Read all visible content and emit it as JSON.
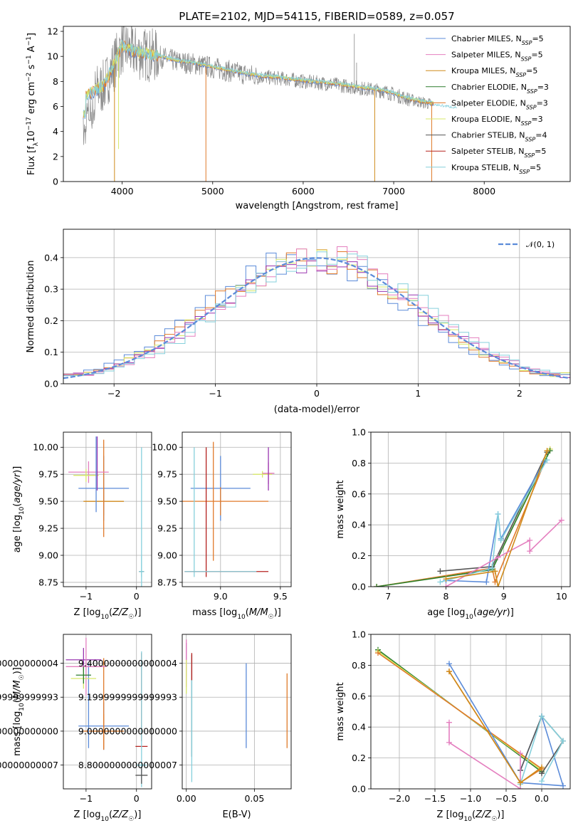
{
  "figure": {
    "title": "PLATE=2102, MJD=54115, FIBERID=0589, z=0.057"
  },
  "colors": {
    "Chabrier MILES": "#5b8bd9",
    "Salpeter MILES": "#e47fbf",
    "Kroupa MILES": "#cf8a1a",
    "Chabrier ELODIE": "#2e7d2e",
    "Salpeter ELODIE": "#e07a2a",
    "Kroupa ELODIE": "#d7e86a",
    "Chabrier STELIB": "#555555",
    "Salpeter STELIB": "#b5221f",
    "Kroupa STELIB": "#86d0dc",
    "data": "#888888",
    "normal": "#5b8bd9",
    "purple": "#9a36b0"
  },
  "chart_data": [
    {
      "id": "spectrum",
      "type": "line",
      "title": "PLATE=2102, MJD=54115, FIBERID=0589, z=0.057",
      "xlabel": "wavelength [Angstrom, rest frame]",
      "ylabel": "Flux [f_λ10^-17 erg cm^-2 s^-1 A^-1]",
      "xlim": [
        3350,
        8950
      ],
      "ylim": [
        0,
        12.4
      ],
      "xticks": [
        4000,
        5000,
        6000,
        7000,
        8000
      ],
      "yticks": [
        0,
        2,
        4,
        6,
        8,
        10,
        12
      ],
      "legend": "top-right",
      "legend_entries": [
        "Chabrier MILES, N_SSP=5",
        "Salpeter MILES, N_SSP=5",
        "Kroupa MILES, N_SSP=5",
        "Chabrier ELODIE, N_SSP=3",
        "Salpeter ELODIE, N_SSP=3",
        "Kroupa ELODIE, N_SSP=3",
        "Chabrier STELIB, N_SSP=4",
        "Salpeter STELIB, N_SSP=5",
        "Kroupa STELIB, N_SSP=5"
      ],
      "continuum": {
        "x": [
          3600,
          3700,
          3800,
          3900,
          4000,
          4100,
          4200,
          4400,
          4600,
          4800,
          5000,
          5200,
          5500,
          5800,
          6000,
          6300,
          6600,
          6900,
          7200,
          7400,
          7600,
          7800,
          8000,
          8300,
          8600,
          8850
        ],
        "y": [
          6.8,
          7.2,
          7.6,
          9.2,
          10.8,
          10.4,
          10.2,
          10.0,
          9.6,
          9.4,
          9.1,
          8.8,
          8.4,
          8.2,
          8.0,
          7.8,
          7.5,
          7.2,
          6.5,
          6.2,
          6.0,
          5.8,
          5.7,
          5.5,
          5.4,
          5.3
        ]
      },
      "dips": [
        {
          "x": 3915,
          "y": 0
        },
        {
          "x": 3960,
          "y": 2.6
        },
        {
          "x": 4925,
          "y": 0
        },
        {
          "x": 6790,
          "y": 0
        },
        {
          "x": 7420,
          "y": 0
        }
      ],
      "data_spikes": [
        {
          "x": 6565,
          "y": 11.8
        },
        {
          "x": 6590,
          "y": 9.5
        },
        {
          "x": 6720,
          "y": 7.8
        }
      ]
    },
    {
      "id": "residuals",
      "type": "histogram",
      "xlabel": "(data-model)/error",
      "ylabel": "Normed distribution",
      "xlim": [
        -2.5,
        2.5
      ],
      "ylim": [
        0,
        0.49
      ],
      "xticks": [
        -2,
        -1,
        0,
        1,
        2
      ],
      "yticks": [
        0.0,
        0.1,
        0.2,
        0.3,
        0.4
      ],
      "legend": "top-right",
      "legend_entries": [
        "𝒩(0, 1)"
      ],
      "bin_width": 0.1,
      "gaussian": {
        "mean": 0,
        "sigma": 1
      }
    },
    {
      "id": "age_vs_Z",
      "type": "errorbar",
      "xlabel": "Z [log10(Z/Z☉)]",
      "ylabel": "age  [log10(age/yr)]",
      "xlim": [
        -1.45,
        0.3
      ],
      "ylim": [
        8.71,
        10.14
      ],
      "xticks": [
        -1,
        0
      ],
      "yticks": [
        8.75,
        9.0,
        9.25,
        9.5,
        9.75,
        10.0
      ],
      "points": [
        {
          "x": -0.65,
          "y": 9.5,
          "xerr": 0.4,
          "yerr": 0.13,
          "c": "Salpeter ELODIE"
        },
        {
          "x": -0.65,
          "y": 9.5,
          "xerr": 0.4,
          "yerr": 0.13,
          "c": "Kroupa MILES"
        },
        {
          "x": -0.65,
          "y": 9.62,
          "xerr": 0.5,
          "yerr": 0.3,
          "c": "Chabrier MILES"
        },
        {
          "x": -0.65,
          "y": 9.62,
          "xerr": 0.0,
          "yerr": 0.45,
          "c": "Salpeter ELODIE"
        },
        {
          "x": -0.95,
          "y": 9.77,
          "xerr": 0.4,
          "yerr": 0.1,
          "c": "Salpeter MILES"
        },
        {
          "x": -1.0,
          "y": 9.74,
          "xerr": 0.25,
          "yerr": 0.06,
          "c": "Kroupa ELODIE"
        },
        {
          "x": -0.78,
          "y": 9.85,
          "xerr": 0.0,
          "yerr": 0.25,
          "c": "purple"
        },
        {
          "x": -0.8,
          "y": 9.75,
          "xerr": 0.0,
          "yerr": 0.35,
          "c": "Chabrier MILES"
        },
        {
          "x": 0.1,
          "y": 9.4,
          "xerr": 0.0,
          "yerr": 0.6,
          "c": "Kroupa STELIB"
        },
        {
          "x": 0.1,
          "y": 8.85,
          "xerr": 0.05,
          "yerr": 0.0,
          "c": "Chabrier STELIB"
        },
        {
          "x": 0.1,
          "y": 8.85,
          "xerr": 0.05,
          "yerr": 0.15,
          "c": "Kroupa STELIB"
        }
      ]
    },
    {
      "id": "age_vs_mass",
      "type": "errorbar",
      "xlabel": "mass [log10(M/M☉)]",
      "ylabel": "",
      "xlim": [
        8.68,
        9.59
      ],
      "ylim": [
        8.71,
        10.14
      ],
      "xticks": [
        9.0,
        9.5
      ],
      "yticks": [
        8.75,
        9.0,
        9.25,
        9.5,
        9.75,
        10.0
      ],
      "points": [
        {
          "x": 9.0,
          "y": 9.62,
          "xerr": 0.25,
          "yerr": 0.3,
          "c": "Chabrier MILES"
        },
        {
          "x": 9.0,
          "y": 9.5,
          "xerr": 0.4,
          "yerr": 0.13,
          "c": "Salpeter ELODIE"
        },
        {
          "x": 8.94,
          "y": 9.5,
          "xerr": 0.0,
          "yerr": 0.55,
          "c": "Salpeter ELODIE"
        },
        {
          "x": 9.35,
          "y": 9.75,
          "xerr": 0.08,
          "yerr": 0.03,
          "c": "Kroupa ELODIE"
        },
        {
          "x": 9.4,
          "y": 9.76,
          "xerr": 0.05,
          "yerr": 0.1,
          "c": "Salpeter MILES"
        },
        {
          "x": 9.4,
          "y": 9.8,
          "xerr": 0.0,
          "yerr": 0.2,
          "c": "purple"
        },
        {
          "x": 8.88,
          "y": 9.4,
          "xerr": 0.0,
          "yerr": 0.6,
          "c": "Salpeter STELIB"
        },
        {
          "x": 8.78,
          "y": 9.4,
          "xerr": 0.0,
          "yerr": 0.6,
          "c": "Kroupa STELIB"
        },
        {
          "x": 9.05,
          "y": 8.85,
          "xerr": 0.35,
          "yerr": 0.0,
          "c": "Salpeter STELIB"
        },
        {
          "x": 9.0,
          "y": 8.85,
          "xerr": 0.3,
          "yerr": 0.0,
          "c": "Kroupa STELIB"
        }
      ]
    },
    {
      "id": "weight_vs_age",
      "type": "line",
      "xlabel": "age  [log10(age/yr)]",
      "ylabel": "mass weight",
      "xlim": [
        6.7,
        10.15
      ],
      "ylim": [
        0,
        1.0
      ],
      "xticks": [
        7,
        8,
        9,
        10
      ],
      "yticks": [
        0.0,
        0.2,
        0.4,
        0.6,
        0.8,
        1.0
      ],
      "series": [
        {
          "c": "Salpeter ELODIE",
          "x": [
            6.8,
            8.8,
            8.85,
            9.8
          ],
          "y": [
            0.0,
            0.12,
            0.03,
            0.89
          ]
        },
        {
          "c": "Kroupa ELODIE",
          "x": [
            6.8,
            8.8,
            9.8
          ],
          "y": [
            0.0,
            0.11,
            0.89
          ]
        },
        {
          "c": "Chabrier ELODIE",
          "x": [
            6.8,
            8.8,
            9.8
          ],
          "y": [
            0.0,
            0.11,
            0.88
          ]
        },
        {
          "c": "Chabrier STELIB",
          "x": [
            7.9,
            8.8,
            9.75
          ],
          "y": [
            0.1,
            0.13,
            0.87
          ]
        },
        {
          "c": "Chabrier MILES",
          "x": [
            8.0,
            8.7,
            8.9,
            8.95,
            9.7
          ],
          "y": [
            0.04,
            0.03,
            0.47,
            0.31,
            0.81
          ]
        },
        {
          "c": "Kroupa STELIB",
          "x": [
            7.9,
            8.8,
            8.9,
            8.95,
            9.75
          ],
          "y": [
            0.03,
            0.12,
            0.47,
            0.3,
            0.82
          ]
        },
        {
          "c": "Salpeter MILES",
          "x": [
            8.0,
            8.9,
            9.45,
            9.45,
            10.0
          ],
          "y": [
            0.0,
            0.19,
            0.3,
            0.23,
            0.43
          ]
        },
        {
          "c": "Kroupa MILES",
          "x": [
            8.0,
            8.85,
            8.9,
            9.75
          ],
          "y": [
            0.05,
            0.1,
            0.0,
            0.88
          ]
        }
      ]
    },
    {
      "id": "mass_vs_Z",
      "type": "errorbar",
      "xlabel": "Z [log10(Z/Z☉)]",
      "ylabel": "mass [log10(M/M☉)]",
      "xlim": [
        -1.45,
        0.3
      ],
      "ylim": [
        8.66,
        9.57
      ],
      "xticks": [
        -1,
        0
      ],
      "yticks": [
        8.8,
        9.0,
        9.2,
        9.4
      ],
      "points": [
        {
          "x": -0.65,
          "y": 9.03,
          "xerr": 0.5,
          "yerr": 0.14,
          "c": "Chabrier MILES"
        },
        {
          "x": -0.65,
          "y": 9.0,
          "xerr": 0.4,
          "yerr": 0.1,
          "c": "Salpeter ELODIE"
        },
        {
          "x": -0.65,
          "y": 9.16,
          "xerr": 0.0,
          "yerr": 0.27,
          "c": "Salpeter ELODIE"
        },
        {
          "x": -0.95,
          "y": 9.15,
          "xerr": 0.0,
          "yerr": 0.25,
          "c": "Chabrier MILES"
        },
        {
          "x": -1.05,
          "y": 9.42,
          "xerr": 0.35,
          "yerr": 0.07,
          "c": "purple"
        },
        {
          "x": -1.0,
          "y": 9.38,
          "xerr": 0.4,
          "yerr": 0.17,
          "c": "Salpeter MILES"
        },
        {
          "x": -1.05,
          "y": 9.31,
          "xerr": 0.25,
          "yerr": 0.06,
          "c": "Kroupa ELODIE"
        },
        {
          "x": -1.05,
          "y": 9.33,
          "xerr": 0.15,
          "yerr": 0.05,
          "c": "Chabrier ELODIE"
        },
        {
          "x": 0.1,
          "y": 9.2,
          "xerr": 0.0,
          "yerr": 0.26,
          "c": "Salpeter STELIB"
        },
        {
          "x": 0.1,
          "y": 8.91,
          "xerr": 0.12,
          "yerr": 0.0,
          "c": "Salpeter STELIB"
        },
        {
          "x": 0.1,
          "y": 9.07,
          "xerr": 0.0,
          "yerr": 0.4,
          "c": "Kroupa STELIB"
        },
        {
          "x": 0.1,
          "y": 8.8,
          "xerr": 0.1,
          "yerr": 0.0,
          "c": "Kroupa STELIB"
        },
        {
          "x": 0.1,
          "y": 8.74,
          "xerr": 0.12,
          "yerr": 0.05,
          "c": "Chabrier STELIB"
        }
      ]
    },
    {
      "id": "mass_vs_EBV",
      "type": "errorbar",
      "xlabel": "E(B-V)",
      "ylabel": "",
      "xlim": [
        -0.003,
        0.077
      ],
      "ylim": [
        8.66,
        9.57
      ],
      "xticks": [
        0.0,
        0.05
      ],
      "yticks": [
        8.8,
        9.0,
        9.2,
        9.4
      ],
      "points": [
        {
          "x": 0.044,
          "y": 9.15,
          "xerr": 0.0,
          "yerr": 0.25,
          "c": "Chabrier MILES"
        },
        {
          "x": 0.074,
          "y": 9.12,
          "xerr": 0.0,
          "yerr": 0.22,
          "c": "Salpeter ELODIE"
        },
        {
          "x": 0.0,
          "y": 9.42,
          "xerr": 0.0,
          "yerr": 0.1,
          "c": "purple"
        },
        {
          "x": 0.0,
          "y": 9.4,
          "xerr": 0.0,
          "yerr": 0.14,
          "c": "Salpeter MILES"
        },
        {
          "x": 0.0,
          "y": 9.32,
          "xerr": 0.0,
          "yerr": 0.1,
          "c": "Kroupa ELODIE"
        },
        {
          "x": 0.004,
          "y": 9.15,
          "xerr": 0.0,
          "yerr": 0.3,
          "c": "Chabrier STELIB"
        },
        {
          "x": 0.004,
          "y": 9.38,
          "xerr": 0.0,
          "yerr": 0.08,
          "c": "Salpeter STELIB"
        },
        {
          "x": 0.004,
          "y": 9.0,
          "xerr": 0.0,
          "yerr": 0.3,
          "c": "Kroupa STELIB"
        }
      ]
    },
    {
      "id": "weight_vs_Z",
      "type": "line",
      "xlabel": "Z [log10(Z/Z☉)]",
      "ylabel": "mass weight",
      "xlim": [
        -2.4,
        0.4
      ],
      "ylim": [
        0,
        1.0
      ],
      "xticks": [
        -2.0,
        -1.5,
        -1.0,
        -0.5,
        0.0
      ],
      "yticks": [
        0.0,
        0.2,
        0.4,
        0.6,
        0.8,
        1.0
      ],
      "series": [
        {
          "c": "Chabrier ELODIE",
          "x": [
            -2.3,
            0.0
          ],
          "y": [
            0.9,
            0.11
          ]
        },
        {
          "c": "Kroupa ELODIE",
          "x": [
            -2.3,
            0.0
          ],
          "y": [
            0.89,
            0.12
          ]
        },
        {
          "c": "Salpeter ELODIE",
          "x": [
            -2.3,
            0.0
          ],
          "y": [
            0.88,
            0.13
          ]
        },
        {
          "c": "Salpeter ELODIE",
          "x": [
            -1.3,
            -0.3,
            0.0
          ],
          "y": [
            0.76,
            0.04,
            0.13
          ]
        },
        {
          "c": "Chabrier MILES",
          "x": [
            -1.3,
            -0.3,
            0.3,
            0.0,
            -0.3
          ],
          "y": [
            0.81,
            0.04,
            0.02,
            0.47,
            0.12
          ]
        },
        {
          "c": "Chabrier STELIB",
          "x": [
            -0.3,
            0.0,
            0.3,
            0.0
          ],
          "y": [
            0.12,
            0.47,
            0.31,
            0.1
          ]
        },
        {
          "c": "Salpeter MILES",
          "x": [
            -1.3,
            -1.3,
            -0.3,
            -0.3
          ],
          "y": [
            0.43,
            0.3,
            0.0,
            0.23
          ]
        },
        {
          "c": "Kroupa STELIB",
          "x": [
            -0.3,
            0.0,
            0.3,
            0.0
          ],
          "y": [
            0.03,
            0.47,
            0.31,
            0.05
          ]
        },
        {
          "c": "Kroupa MILES",
          "x": [
            -1.3,
            -0.3,
            0.0
          ],
          "y": [
            0.76,
            0.04,
            0.14
          ]
        }
      ]
    }
  ]
}
